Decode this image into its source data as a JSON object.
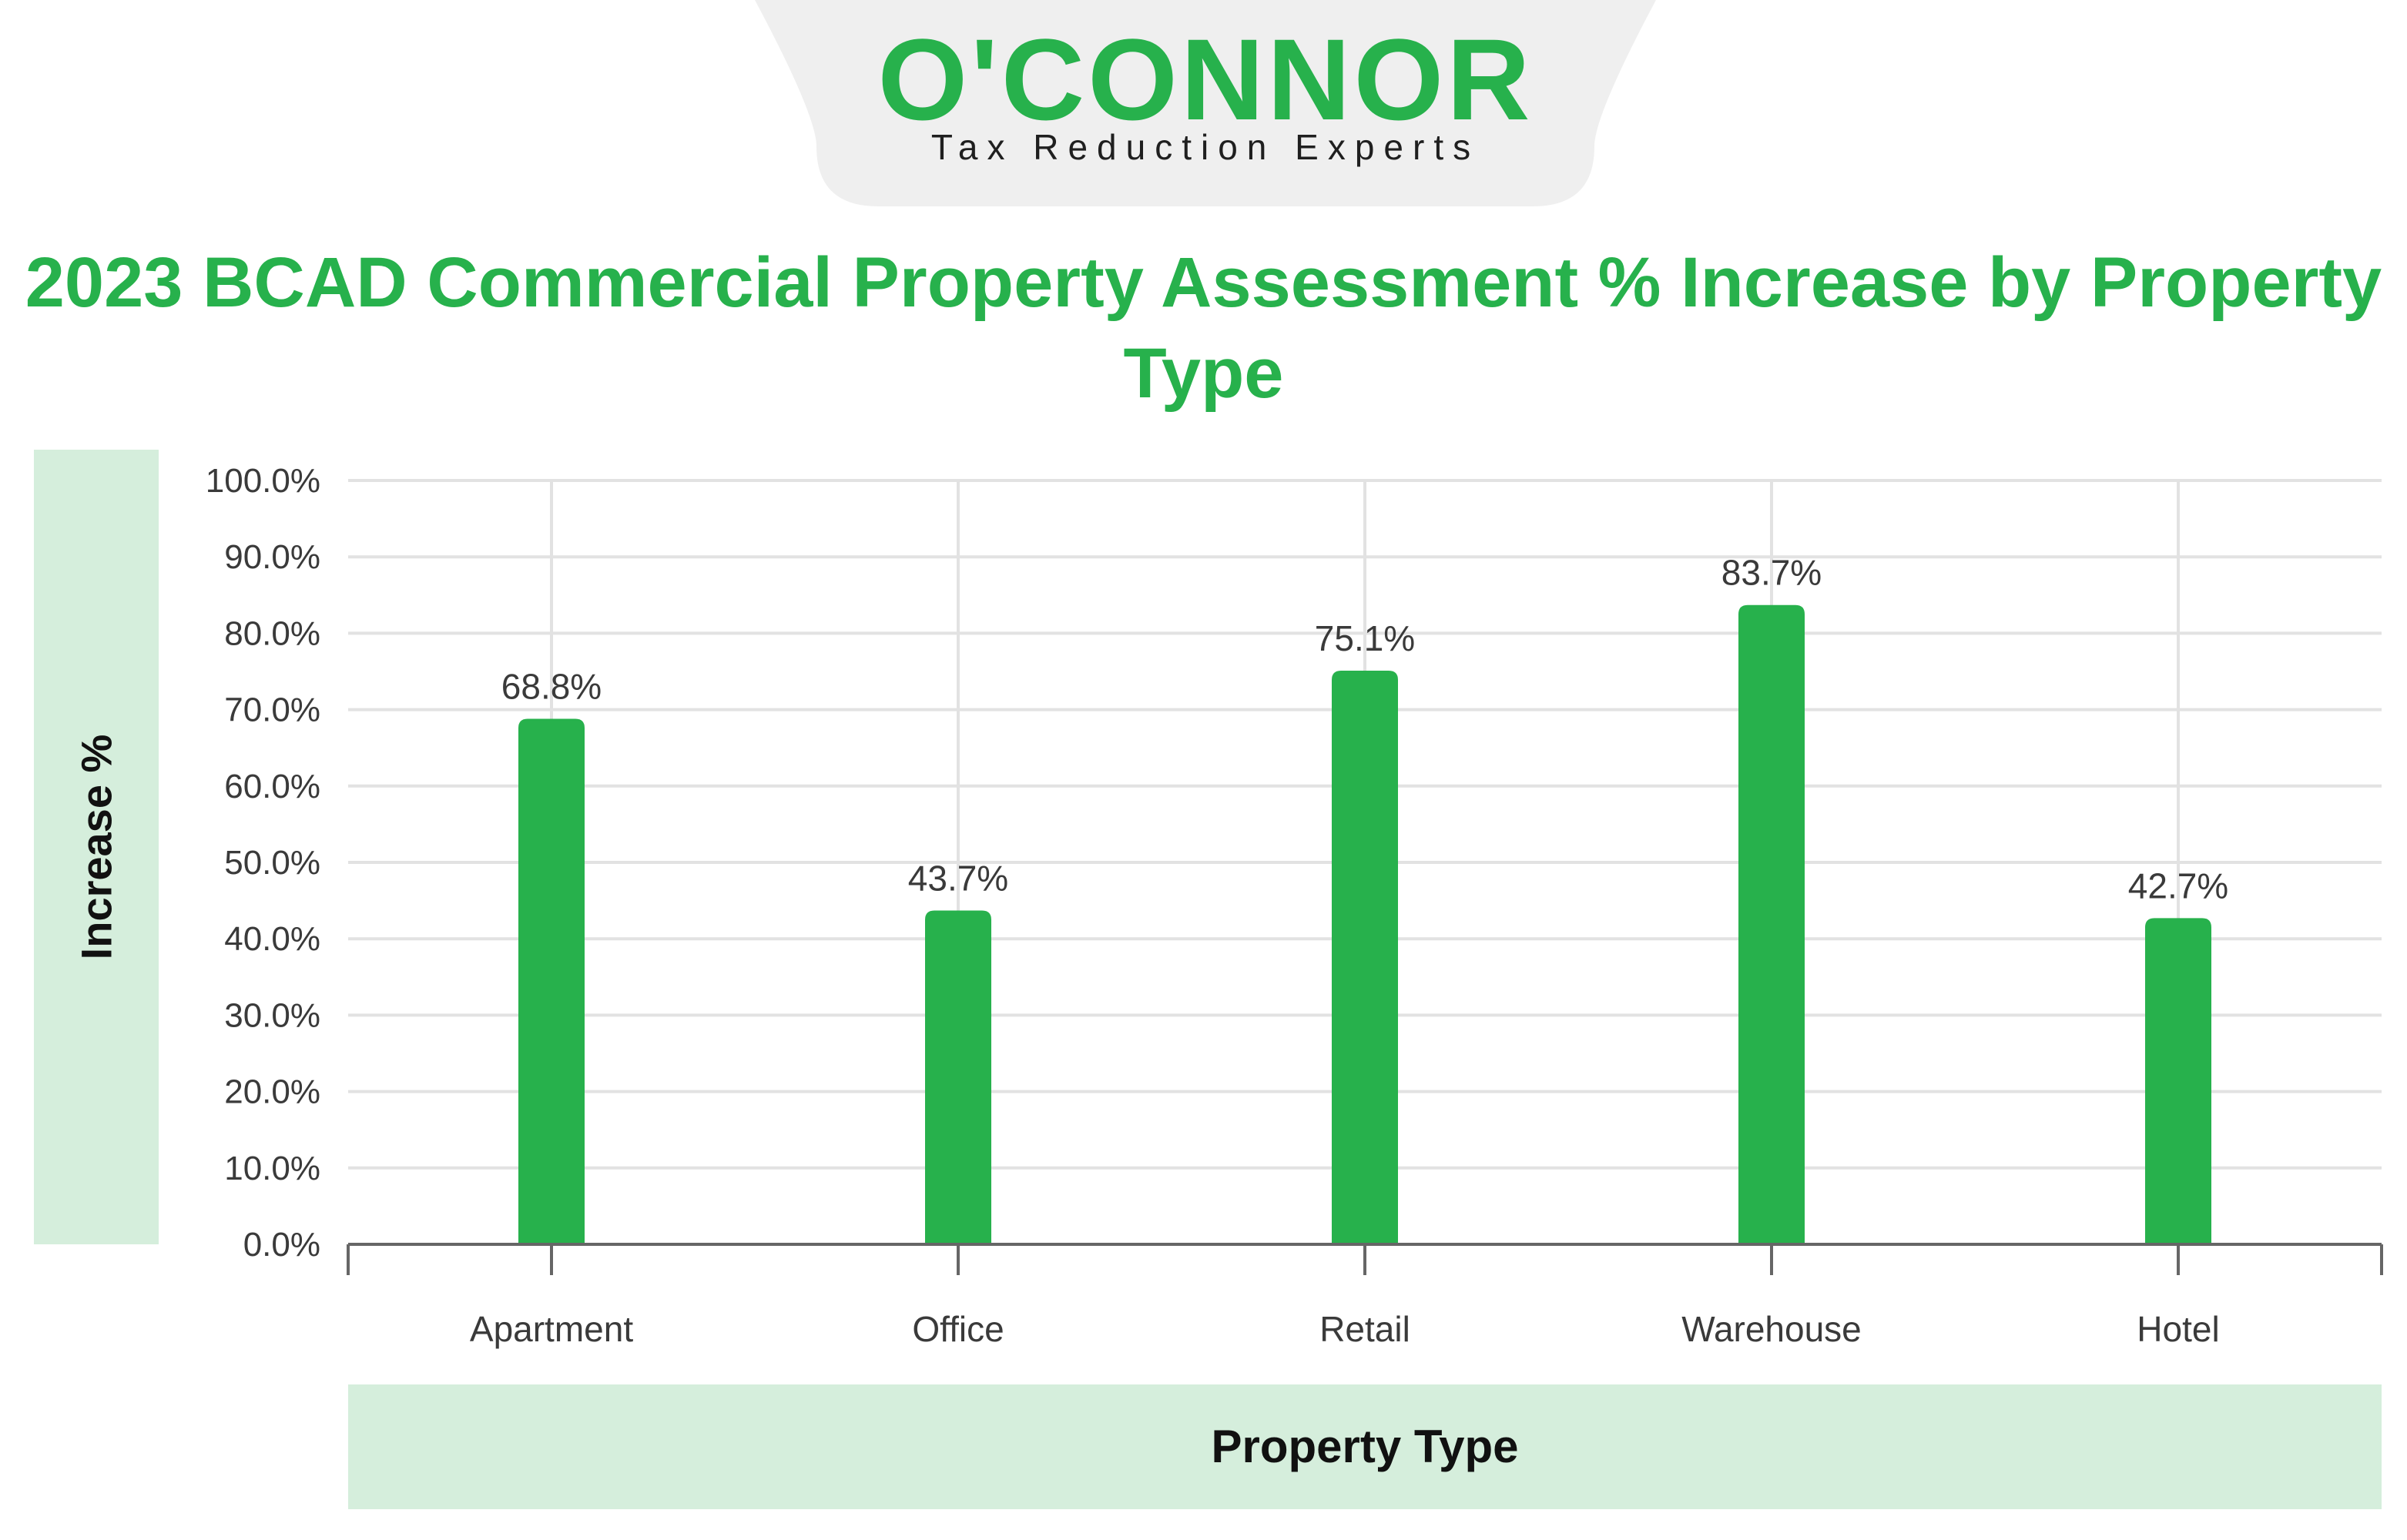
{
  "brand": {
    "name": "O'CONNOR",
    "tagline": "Tax Reduction Experts"
  },
  "colors": {
    "accent": "#27b14c",
    "label_box": "#d5eedc",
    "logo_tab": "#efefef",
    "grid": "#e2e2e2",
    "axis": "#666666"
  },
  "chart_data": {
    "type": "bar",
    "title": "2023 BCAD Commercial Property Assessment % Increase by Property Type",
    "xlabel": "Property Type",
    "ylabel": "Increase %",
    "categories": [
      "Apartment",
      "Office",
      "Retail",
      "Warehouse",
      "Hotel"
    ],
    "values": [
      68.8,
      43.7,
      75.1,
      83.7,
      42.7
    ],
    "value_labels": [
      "68.8%",
      "43.7%",
      "75.1%",
      "83.7%",
      "42.7%"
    ],
    "ylim": [
      0,
      100
    ],
    "yticks": [
      0,
      10,
      20,
      30,
      40,
      50,
      60,
      70,
      80,
      90,
      100
    ],
    "ytick_labels": [
      "0.0%",
      "10.0%",
      "20.0%",
      "30.0%",
      "40.0%",
      "50.0%",
      "60.0%",
      "70.0%",
      "80.0%",
      "90.0%",
      "100.0%"
    ],
    "grid": true,
    "bar_color": "#27b14c"
  }
}
